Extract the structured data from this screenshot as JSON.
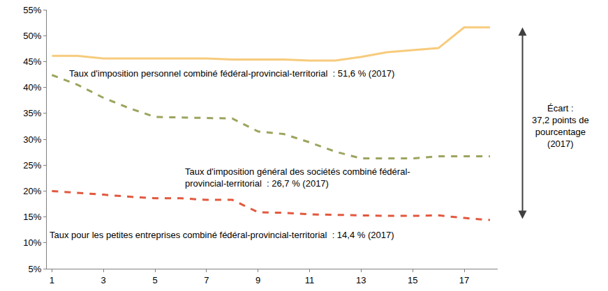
{
  "chart_data": {
    "type": "line",
    "x": [
      1,
      2,
      3,
      4,
      5,
      6,
      7,
      8,
      9,
      10,
      11,
      12,
      13,
      14,
      15,
      16,
      17,
      18
    ],
    "series": [
      {
        "color": "#F7CB7C",
        "line_style": "solid",
        "values": [
          46.1,
          46.1,
          45.6,
          45.6,
          45.6,
          45.6,
          45.6,
          45.4,
          45.4,
          45.4,
          45.2,
          45.2,
          45.9,
          46.8,
          47.2,
          47.6,
          51.6,
          51.6
        ]
      },
      {
        "color": "#9DA45E",
        "line_style": "dash",
        "values": [
          42.4,
          40.5,
          38.0,
          36.0,
          34.3,
          34.2,
          34.0,
          34.0,
          31.5,
          31.0,
          29.4,
          27.6,
          26.3,
          26.3,
          26.3,
          26.7,
          26.7,
          26.7
        ]
      },
      {
        "color": "#E2583E",
        "line_style": "dash",
        "values": [
          20.0,
          19.6,
          19.3,
          18.9,
          18.6,
          18.6,
          18.3,
          18.3,
          15.9,
          15.8,
          15.5,
          15.4,
          15.3,
          15.2,
          15.2,
          15.3,
          14.8,
          14.4
        ]
      }
    ],
    "annotations": [
      "Taux d'imposition personnel combiné fédéral-provincial-territorial  : 51,6 % (2017)",
      "Taux d'imposition général des sociétés combiné fédéral-\nprovincial-territorial  : 26,7 % (2017)",
      "Taux pour les petites entreprises combiné fédéral-provincial-territorial  : 14,4 % (2017)",
      "Écart :\n37,2 points de\npourcentage\n(2017)"
    ],
    "xlim": [
      0.8,
      18.3
    ],
    "xticks": [
      1,
      3,
      5,
      7,
      9,
      11,
      13,
      15,
      17
    ],
    "ylim": [
      5,
      55
    ],
    "yticks": [
      {
        "value": 5,
        "label": "5%"
      },
      {
        "value": 10,
        "label": "10%"
      },
      {
        "value": 15,
        "label": "15%"
      },
      {
        "value": 20,
        "label": "20%"
      },
      {
        "value": 25,
        "label": "25%"
      },
      {
        "value": 30,
        "label": "30%"
      },
      {
        "value": 35,
        "label": "35%"
      },
      {
        "value": 40,
        "label": "40%"
      },
      {
        "value": 45,
        "label": "45%"
      },
      {
        "value": 50,
        "label": "50%"
      },
      {
        "value": 55,
        "label": "55%"
      }
    ],
    "grid": false
  }
}
